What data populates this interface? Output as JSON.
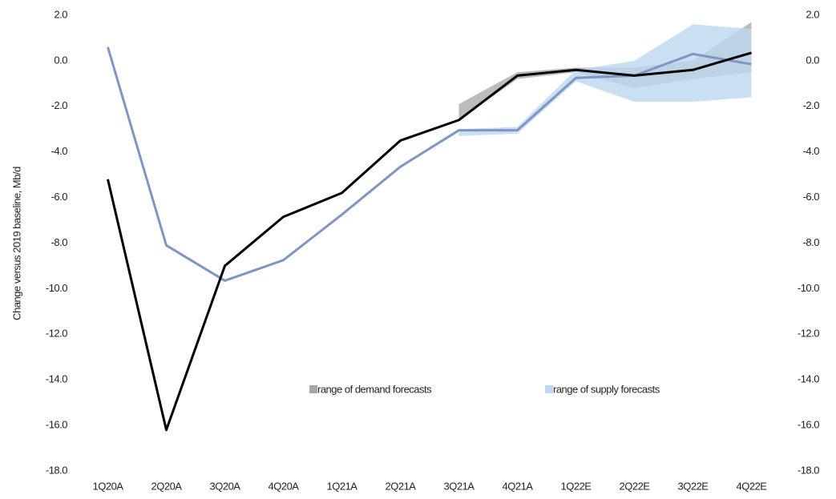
{
  "chart_data": {
    "type": "line",
    "y_label": "Change versus 2019 baseline, Mb/d",
    "categories": [
      "1Q20A",
      "2Q20A",
      "3Q20A",
      "4Q20A",
      "1Q21A",
      "2Q21A",
      "3Q21A",
      "4Q21A",
      "1Q22E",
      "2Q22E",
      "3Q22E",
      "4Q22E"
    ],
    "series": [
      {
        "color": "#000000",
        "values": [
          -5.2,
          -16.2,
          -9.0,
          -6.85,
          -5.8,
          -3.5,
          -2.6,
          -0.65,
          -0.4,
          -0.65,
          -0.4,
          0.35
        ]
      },
      {
        "color": "#7f96c4",
        "values": [
          0.6,
          -8.1,
          -9.65,
          -8.75,
          -6.75,
          -4.65,
          -3.05,
          -3.05,
          -0.75,
          -0.65,
          0.3,
          -0.15
        ]
      }
    ],
    "ranges": [
      {
        "name": "range of demand forecasts",
        "color": "#a6a6a6",
        "opacity": 0.75,
        "low": [
          null,
          null,
          null,
          null,
          null,
          null,
          -2.6,
          -0.8,
          -0.5,
          -1.2,
          -0.8,
          -0.5
        ],
        "high": [
          null,
          null,
          null,
          null,
          null,
          null,
          -1.9,
          -0.5,
          -0.3,
          -0.3,
          0.0,
          1.7
        ]
      },
      {
        "name": "range of supply forecasts",
        "color": "#bdd7ee",
        "opacity": 0.8,
        "low": [
          null,
          null,
          null,
          null,
          null,
          null,
          -3.3,
          -3.2,
          -0.9,
          -1.8,
          -1.8,
          -1.6
        ],
        "high": [
          null,
          null,
          null,
          null,
          null,
          null,
          -3.0,
          -2.9,
          -0.4,
          0.0,
          1.6,
          1.4
        ]
      }
    ],
    "ylim": [
      -18,
      2
    ],
    "yticks": [
      {
        "value": 2,
        "label": "2.0"
      },
      {
        "value": 0,
        "label": "0.0"
      },
      {
        "value": -2,
        "label": "-2.0"
      },
      {
        "value": -4,
        "label": "-4.0"
      },
      {
        "value": -6,
        "label": "-6.0"
      },
      {
        "value": -8,
        "label": "-8.0"
      },
      {
        "value": -10,
        "label": "-10.0"
      },
      {
        "value": -12,
        "label": "-12.0"
      },
      {
        "value": -14,
        "label": "-14.0"
      },
      {
        "value": -16,
        "label": "-16.0"
      },
      {
        "value": -18,
        "label": "-18.0"
      }
    ],
    "y2lim": [
      -18,
      2
    ],
    "y2ticks": [
      {
        "value": 2,
        "label": "2.0"
      },
      {
        "value": 0,
        "label": "0.0"
      },
      {
        "value": -2,
        "label": "-2.0"
      },
      {
        "value": -4,
        "label": "-4.0"
      },
      {
        "value": -6,
        "label": "-6.0"
      },
      {
        "value": -8,
        "label": "-8.0"
      },
      {
        "value": -10,
        "label": "-10.0"
      },
      {
        "value": -12,
        "label": "-12.0"
      },
      {
        "value": -14,
        "label": "-14.0"
      },
      {
        "value": -16,
        "label": "-16.0"
      },
      {
        "value": -18,
        "label": "-18.0"
      }
    ],
    "grid": false
  }
}
